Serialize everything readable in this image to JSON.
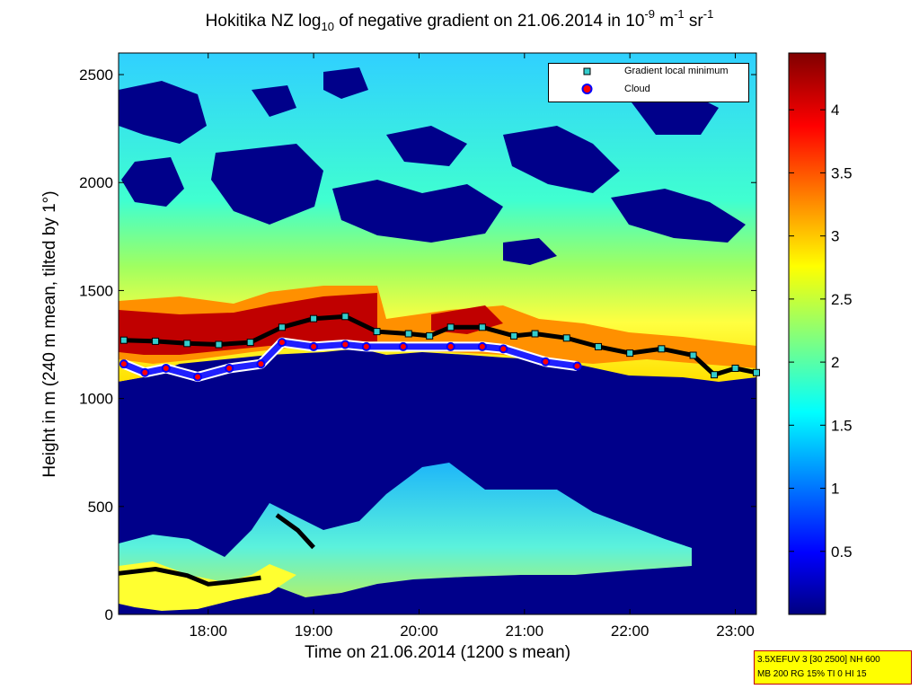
{
  "chart_data": {
    "type": "heatmap",
    "title": {
      "prefix": "Hokitika NZ log",
      "sub": "10",
      "middle": " of negative gradient on 21.06.2014 in 10",
      "exp1": "-9",
      "unit1": " m",
      "exp2": "-1",
      "unit2": " sr",
      "exp3": "-1"
    },
    "xlabel": "Time on 21.06.2014 (1200 s mean)",
    "ylabel": "Height in m (240 m mean, tilted by 1°)",
    "xlim_hours": [
      17.15,
      23.2
    ],
    "ylim": [
      0,
      2600
    ],
    "x_ticks": [
      {
        "value": 18,
        "label": "18:00"
      },
      {
        "value": 19,
        "label": "19:00"
      },
      {
        "value": 20,
        "label": "20:00"
      },
      {
        "value": 21,
        "label": "21:00"
      },
      {
        "value": 22,
        "label": "22:00"
      },
      {
        "value": 23,
        "label": "23:00"
      }
    ],
    "y_ticks": [
      {
        "value": 0,
        "label": "0"
      },
      {
        "value": 500,
        "label": "500"
      },
      {
        "value": 1000,
        "label": "1000"
      },
      {
        "value": 1500,
        "label": "1500"
      },
      {
        "value": 2000,
        "label": "2000"
      },
      {
        "value": 2500,
        "label": "2500"
      }
    ],
    "colorbar": {
      "range": [
        0,
        4.45
      ],
      "colormap": "jet",
      "ticks": [
        {
          "value": 0.5,
          "label": "0.5"
        },
        {
          "value": 1,
          "label": "1"
        },
        {
          "value": 1.5,
          "label": "1.5"
        },
        {
          "value": 2,
          "label": "2"
        },
        {
          "value": 2.5,
          "label": "2.5"
        },
        {
          "value": 3,
          "label": "3"
        },
        {
          "value": 3.5,
          "label": "3.5"
        },
        {
          "value": 4,
          "label": "4"
        }
      ]
    },
    "legend": [
      {
        "label": "Gradient local minimum",
        "marker": "square",
        "color": "#33cccc"
      },
      {
        "label": "Cloud",
        "marker": "circle",
        "color": "#ff0000"
      }
    ],
    "gradient_local_minimum": [
      {
        "t": 17.2,
        "h": 1270
      },
      {
        "t": 17.5,
        "h": 1265
      },
      {
        "t": 17.8,
        "h": 1255
      },
      {
        "t": 18.1,
        "h": 1250
      },
      {
        "t": 18.4,
        "h": 1260
      },
      {
        "t": 18.7,
        "h": 1330
      },
      {
        "t": 19.0,
        "h": 1370
      },
      {
        "t": 19.3,
        "h": 1380
      },
      {
        "t": 19.6,
        "h": 1310
      },
      {
        "t": 19.9,
        "h": 1300
      },
      {
        "t": 20.1,
        "h": 1290
      },
      {
        "t": 20.3,
        "h": 1330
      },
      {
        "t": 20.6,
        "h": 1330
      },
      {
        "t": 20.9,
        "h": 1290
      },
      {
        "t": 21.1,
        "h": 1300
      },
      {
        "t": 21.4,
        "h": 1280
      },
      {
        "t": 21.7,
        "h": 1240
      },
      {
        "t": 22.0,
        "h": 1210
      },
      {
        "t": 22.3,
        "h": 1230
      },
      {
        "t": 22.6,
        "h": 1200
      },
      {
        "t": 22.8,
        "h": 1110
      },
      {
        "t": 23.0,
        "h": 1140
      },
      {
        "t": 23.2,
        "h": 1120
      }
    ],
    "low_layer_minimum": [
      {
        "t": 17.15,
        "h": 190
      },
      {
        "t": 17.5,
        "h": 210
      },
      {
        "t": 17.8,
        "h": 180
      },
      {
        "t": 18.0,
        "h": 140
      },
      {
        "t": 18.2,
        "h": 150
      },
      {
        "t": 18.5,
        "h": 170
      }
    ],
    "rising_layer_minimum": [
      {
        "t": 18.65,
        "h": 460
      },
      {
        "t": 18.85,
        "h": 390
      },
      {
        "t": 19.0,
        "h": 310
      }
    ],
    "cloud_base": [
      {
        "t": 17.2,
        "h": 1160
      },
      {
        "t": 17.4,
        "h": 1120
      },
      {
        "t": 17.6,
        "h": 1140
      },
      {
        "t": 17.9,
        "h": 1100
      },
      {
        "t": 18.2,
        "h": 1140
      },
      {
        "t": 18.5,
        "h": 1160
      },
      {
        "t": 18.7,
        "h": 1260
      },
      {
        "t": 19.0,
        "h": 1240
      },
      {
        "t": 19.3,
        "h": 1250
      },
      {
        "t": 19.5,
        "h": 1240
      },
      {
        "t": 19.85,
        "h": 1240
      },
      {
        "t": 20.3,
        "h": 1240
      },
      {
        "t": 20.6,
        "h": 1240
      },
      {
        "t": 20.8,
        "h": 1230
      },
      {
        "t": 21.2,
        "h": 1170
      },
      {
        "t": 21.5,
        "h": 1150
      }
    ]
  },
  "infobox": {
    "line1": "3.5XEFUV 3 [30 2500] NH 600",
    "line2": "MB 200 RG 15% TI 0 HI 15"
  }
}
